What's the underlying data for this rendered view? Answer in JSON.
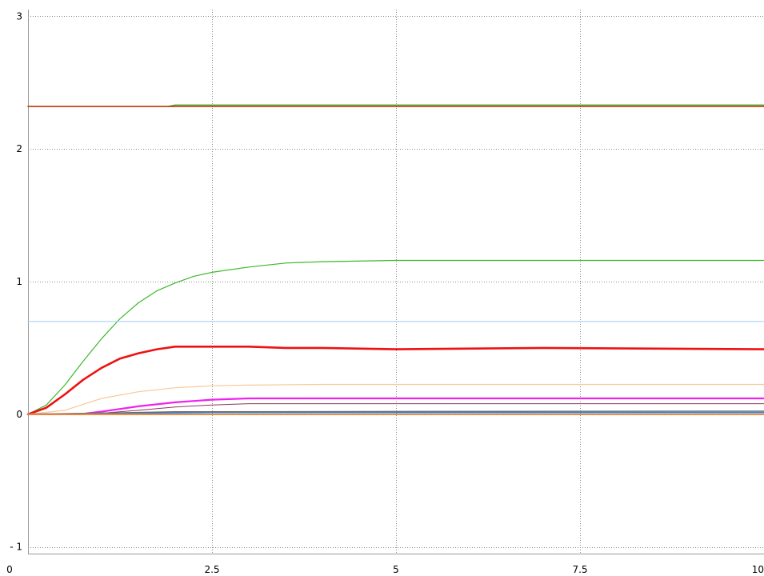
{
  "chart_data": {
    "type": "line",
    "title": "",
    "xlabel": "",
    "ylabel": "",
    "xlim": [
      0,
      10
    ],
    "ylim": [
      -1.05,
      3.05
    ],
    "grid": true,
    "legend": "none",
    "x_ticks": [
      {
        "value": 0,
        "label": "0"
      },
      {
        "value": 2.5,
        "label": "2.5"
      },
      {
        "value": 5,
        "label": "5"
      },
      {
        "value": 7.5,
        "label": "7.5"
      },
      {
        "value": 10,
        "label": "10"
      }
    ],
    "y_ticks": [
      {
        "value": -1,
        "label": "- 1"
      },
      {
        "value": 0,
        "label": "0"
      },
      {
        "value": 1,
        "label": "1"
      },
      {
        "value": 2,
        "label": "2"
      },
      {
        "value": 3,
        "label": "3"
      }
    ],
    "series": [
      {
        "color": "#3aaa1e",
        "width": 1.5,
        "x": [
          0,
          1.9,
          2.0,
          10
        ],
        "y": [
          2.32,
          2.32,
          2.33,
          2.33
        ]
      },
      {
        "color": "#cc3311",
        "width": 1.5,
        "x": [
          0,
          10
        ],
        "y": [
          2.32,
          2.32
        ]
      },
      {
        "color": "#3cb82a",
        "width": 1.2,
        "x": [
          0,
          0.25,
          0.5,
          0.75,
          1.0,
          1.25,
          1.5,
          1.75,
          2.0,
          2.25,
          2.5,
          3.0,
          3.5,
          4.0,
          5.0,
          6.0,
          8.0,
          10.0
        ],
        "y": [
          0,
          0.07,
          0.22,
          0.4,
          0.57,
          0.72,
          0.84,
          0.93,
          0.99,
          1.04,
          1.07,
          1.11,
          1.14,
          1.15,
          1.16,
          1.16,
          1.16,
          1.16
        ]
      },
      {
        "color": "#a8d4f5",
        "width": 1.2,
        "x": [
          0,
          10
        ],
        "y": [
          0.7,
          0.7
        ]
      },
      {
        "color": "#ee1111",
        "width": 2.6,
        "x": [
          0,
          0.25,
          0.5,
          0.75,
          1.0,
          1.25,
          1.5,
          1.75,
          2.0,
          2.5,
          3.0,
          3.5,
          4.0,
          5.0,
          7.0,
          10.0
        ],
        "y": [
          0,
          0.05,
          0.15,
          0.26,
          0.35,
          0.42,
          0.46,
          0.49,
          0.51,
          0.51,
          0.51,
          0.5,
          0.5,
          0.49,
          0.5,
          0.49
        ]
      },
      {
        "color": "#f9c89a",
        "width": 1.2,
        "x": [
          0,
          0.5,
          1.0,
          1.5,
          2.0,
          2.5,
          3.0,
          4.0,
          5.0,
          10.0
        ],
        "y": [
          0,
          0.03,
          0.12,
          0.17,
          0.2,
          0.215,
          0.22,
          0.225,
          0.225,
          0.225
        ]
      },
      {
        "color": "#ee22ee",
        "width": 2.2,
        "x": [
          0,
          0.7,
          1.0,
          1.5,
          2.0,
          2.5,
          3.0,
          3.5,
          10.0
        ],
        "y": [
          0,
          0.0,
          0.02,
          0.06,
          0.09,
          0.11,
          0.12,
          0.12,
          0.12
        ]
      },
      {
        "color": "#8a3a5a",
        "width": 1.0,
        "x": [
          0,
          0.8,
          1.5,
          2.0,
          2.5,
          3.0,
          10.0
        ],
        "y": [
          0,
          0.0,
          0.03,
          0.055,
          0.07,
          0.08,
          0.08
        ]
      },
      {
        "color": "#3a7fd0",
        "width": 2.0,
        "x": [
          0,
          1.5,
          2.5,
          10.0
        ],
        "y": [
          0,
          0.01,
          0.015,
          0.015
        ]
      },
      {
        "color": "#6a6a6a",
        "width": 1.0,
        "x": [
          0,
          2.0,
          10.0
        ],
        "y": [
          0,
          0.02,
          0.025
        ]
      },
      {
        "color": "#e88a3a",
        "width": 2.0,
        "x": [
          0,
          10
        ],
        "y": [
          0,
          0
        ]
      }
    ]
  }
}
